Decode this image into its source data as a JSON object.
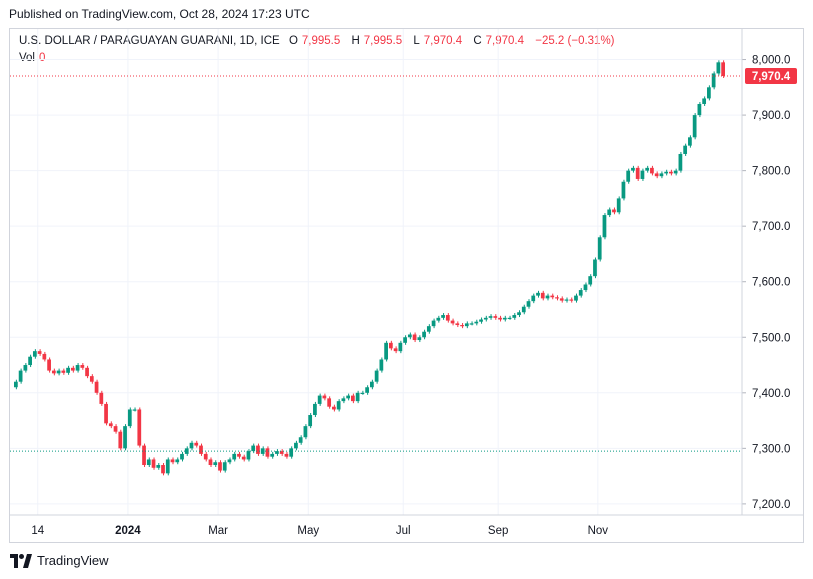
{
  "header": {
    "published": "Published on TradingView.com, Oct 28, 2024 17:23 UTC"
  },
  "legend": {
    "title": "U.S. DOLLAR / PARAGUAYAN GUARANI, 1D, ICE",
    "open_label": "O",
    "open": "7,995.5",
    "high_label": "H",
    "high": "7,995.5",
    "low_label": "L",
    "low": "7,970.4",
    "close_label": "C",
    "close": "7,970.4",
    "change": "−25.2 (−0.31%)",
    "vol_label": "Vol",
    "vol_value": "0"
  },
  "colors": {
    "up": "#089981",
    "down": "#f23645",
    "grid": "#f0f3fa",
    "text": "#131722"
  },
  "footer": {
    "brand": "TradingView",
    "logo_icon": "tradingview-logo-icon"
  },
  "chart_data": {
    "type": "candlestick",
    "symbol": "U.S. DOLLAR / PARAGUAYAN GUARANI",
    "interval": "1D",
    "exchange": "ICE",
    "y_axis_ticks": [
      "8,000.0",
      "7,900.0",
      "7,800.0",
      "7,700.0",
      "7,600.0",
      "7,500.0",
      "7,400.0",
      "7,300.0",
      "7,200.0"
    ],
    "x_axis_ticks": [
      "14",
      "2024",
      "Mar",
      "May",
      "Jul",
      "Sep",
      "Nov"
    ],
    "ylim": [
      7180,
      8055
    ],
    "last_price": 7970.4,
    "last_price_label": "7,970.4",
    "reference_line": 7295,
    "grid": true,
    "close_series": [
      7420,
      7440,
      7450,
      7465,
      7475,
      7470,
      7460,
      7440,
      7435,
      7440,
      7436,
      7445,
      7440,
      7450,
      7445,
      7430,
      7420,
      7400,
      7380,
      7345,
      7340,
      7330,
      7300,
      7340,
      7370,
      7370,
      7305,
      7270,
      7280,
      7265,
      7270,
      7255,
      7280,
      7275,
      7280,
      7290,
      7300,
      7310,
      7305,
      7290,
      7280,
      7270,
      7275,
      7260,
      7275,
      7280,
      7290,
      7285,
      7280,
      7295,
      7305,
      7290,
      7300,
      7285,
      7290,
      7295,
      7290,
      7285,
      7300,
      7310,
      7320,
      7340,
      7360,
      7380,
      7395,
      7390,
      7375,
      7370,
      7385,
      7390,
      7395,
      7385,
      7400,
      7400,
      7410,
      7420,
      7440,
      7460,
      7490,
      7480,
      7475,
      7490,
      7500,
      7505,
      7495,
      7500,
      7510,
      7520,
      7530,
      7535,
      7540,
      7530,
      7525,
      7522,
      7520,
      7525,
      7525,
      7528,
      7532,
      7535,
      7538,
      7535,
      7532,
      7535,
      7535,
      7540,
      7545,
      7555,
      7565,
      7575,
      7580,
      7570,
      7575,
      7572,
      7570,
      7566,
      7568,
      7566,
      7575,
      7585,
      7595,
      7610,
      7640,
      7680,
      7720,
      7730,
      7725,
      7750,
      7780,
      7800,
      7805,
      7785,
      7800,
      7805,
      7795,
      7790,
      7795,
      7798,
      7795,
      7800,
      7830,
      7845,
      7860,
      7900,
      7920,
      7930,
      7950,
      7975,
      7995,
      7970.4
    ]
  }
}
